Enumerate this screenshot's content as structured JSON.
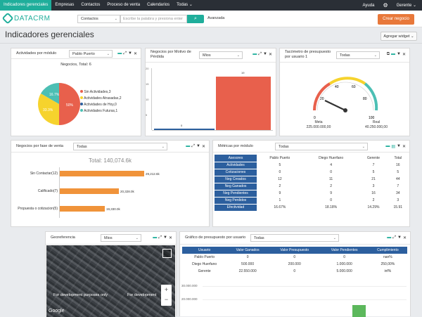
{
  "nav": {
    "items": [
      "Indicadores gerenciales",
      "Empresas",
      "Contactos",
      "Proceso de venta",
      "Calendarios",
      "Todas"
    ],
    "ayuda": "Ayuda",
    "user": "Gerente"
  },
  "search": {
    "logo": "DATACRM",
    "module": "Contactos",
    "placeholder": "Escribe la palabra y presiona enter",
    "advanced": "Avanzada",
    "create": "Crear negocio"
  },
  "page": {
    "title": "Indicadores gerenciales",
    "add_widget": "Agregar widget"
  },
  "w1": {
    "title": "Actividades por módulo",
    "select": "Pablo Puerto",
    "subtitle": "Negocios, Total: 6",
    "legend": [
      "Sin Actividades,3",
      "Actividades Atrasadas,2",
      "Actividades de Hoy,0",
      "Actividades Futuras,1"
    ],
    "pct": [
      "50%",
      "33.3%",
      "16.7%"
    ],
    "colors": [
      "#e8604c",
      "#f6d32d",
      "#2c5f9e",
      "#4cbfb4"
    ]
  },
  "w2": {
    "title": "Negocios por Motivo de Pérdida",
    "select": "Mios",
    "bar_label": "19",
    "small_label": "0",
    "yticks": [
      "20",
      "15",
      "10",
      "5",
      "0"
    ]
  },
  "w3": {
    "title": "Tacómetro de presupuesto por usuario 1",
    "select": "Todas",
    "ticks": [
      "0",
      "20",
      "40",
      "60",
      "80",
      "100"
    ],
    "meta_label": "Meta",
    "meta_value": "225.000.000,00",
    "real_label": "Real",
    "real_value": "40.250.000,00"
  },
  "w4": {
    "title": "Negocios por fase de venta",
    "select": "Todas",
    "total": "Total: 140,074.6k",
    "bars": [
      {
        "label": "Sin Contactar(12)",
        "value": "29,212.6k"
      },
      {
        "label": "Calificado(7)",
        "value": "20,328.0k"
      },
      {
        "label": "Propuesta o cotizacion(5)",
        "value": "19,330.0k"
      }
    ]
  },
  "w5": {
    "title": "Métricas por módulo",
    "select": "Todas",
    "headers": [
      "Asesores",
      "Pablo Puerto",
      "Diego Huerfano",
      "Gerente",
      "Total"
    ],
    "rows": [
      [
        "Actividades",
        "5",
        "4",
        "7",
        "16"
      ],
      [
        "Cotizaciones",
        "0",
        "0",
        "5",
        "5"
      ],
      [
        "Neg Creados",
        "12",
        "11",
        "21",
        "44"
      ],
      [
        "Neg Ganados",
        "2",
        "2",
        "3",
        "7"
      ],
      [
        "Neg Pendientes",
        "9",
        "9",
        "16",
        "34"
      ],
      [
        "Neg Perdidos",
        "1",
        "0",
        "2",
        "3"
      ],
      [
        "Efectividad",
        "16.67%",
        "18.18%",
        "14.29%",
        "15.91"
      ]
    ]
  },
  "w6": {
    "title": "Georeferencia",
    "select": "Mios",
    "dev1": "For development purposes only",
    "dev2": "For development",
    "google": "Google"
  },
  "w7": {
    "title": "Gráfico de presupuesto por usuario",
    "select": "Todas",
    "headers": [
      "Usuario",
      "Valor Ganados",
      "Valor Presupuesto",
      "Valor Pendientes",
      "Cumplimiento"
    ],
    "rows": [
      [
        "Pablo Puerto",
        "0",
        "0",
        "0",
        "nan%"
      ],
      [
        "Diego Huerfano",
        "500.000",
        "200.000",
        "1.000.000",
        "250,00%"
      ],
      [
        "Gerente",
        "22.550.000",
        "0",
        "5.000.000",
        "inf%"
      ]
    ],
    "yticks": [
      "30.000.000",
      "20.000.000"
    ]
  }
}
